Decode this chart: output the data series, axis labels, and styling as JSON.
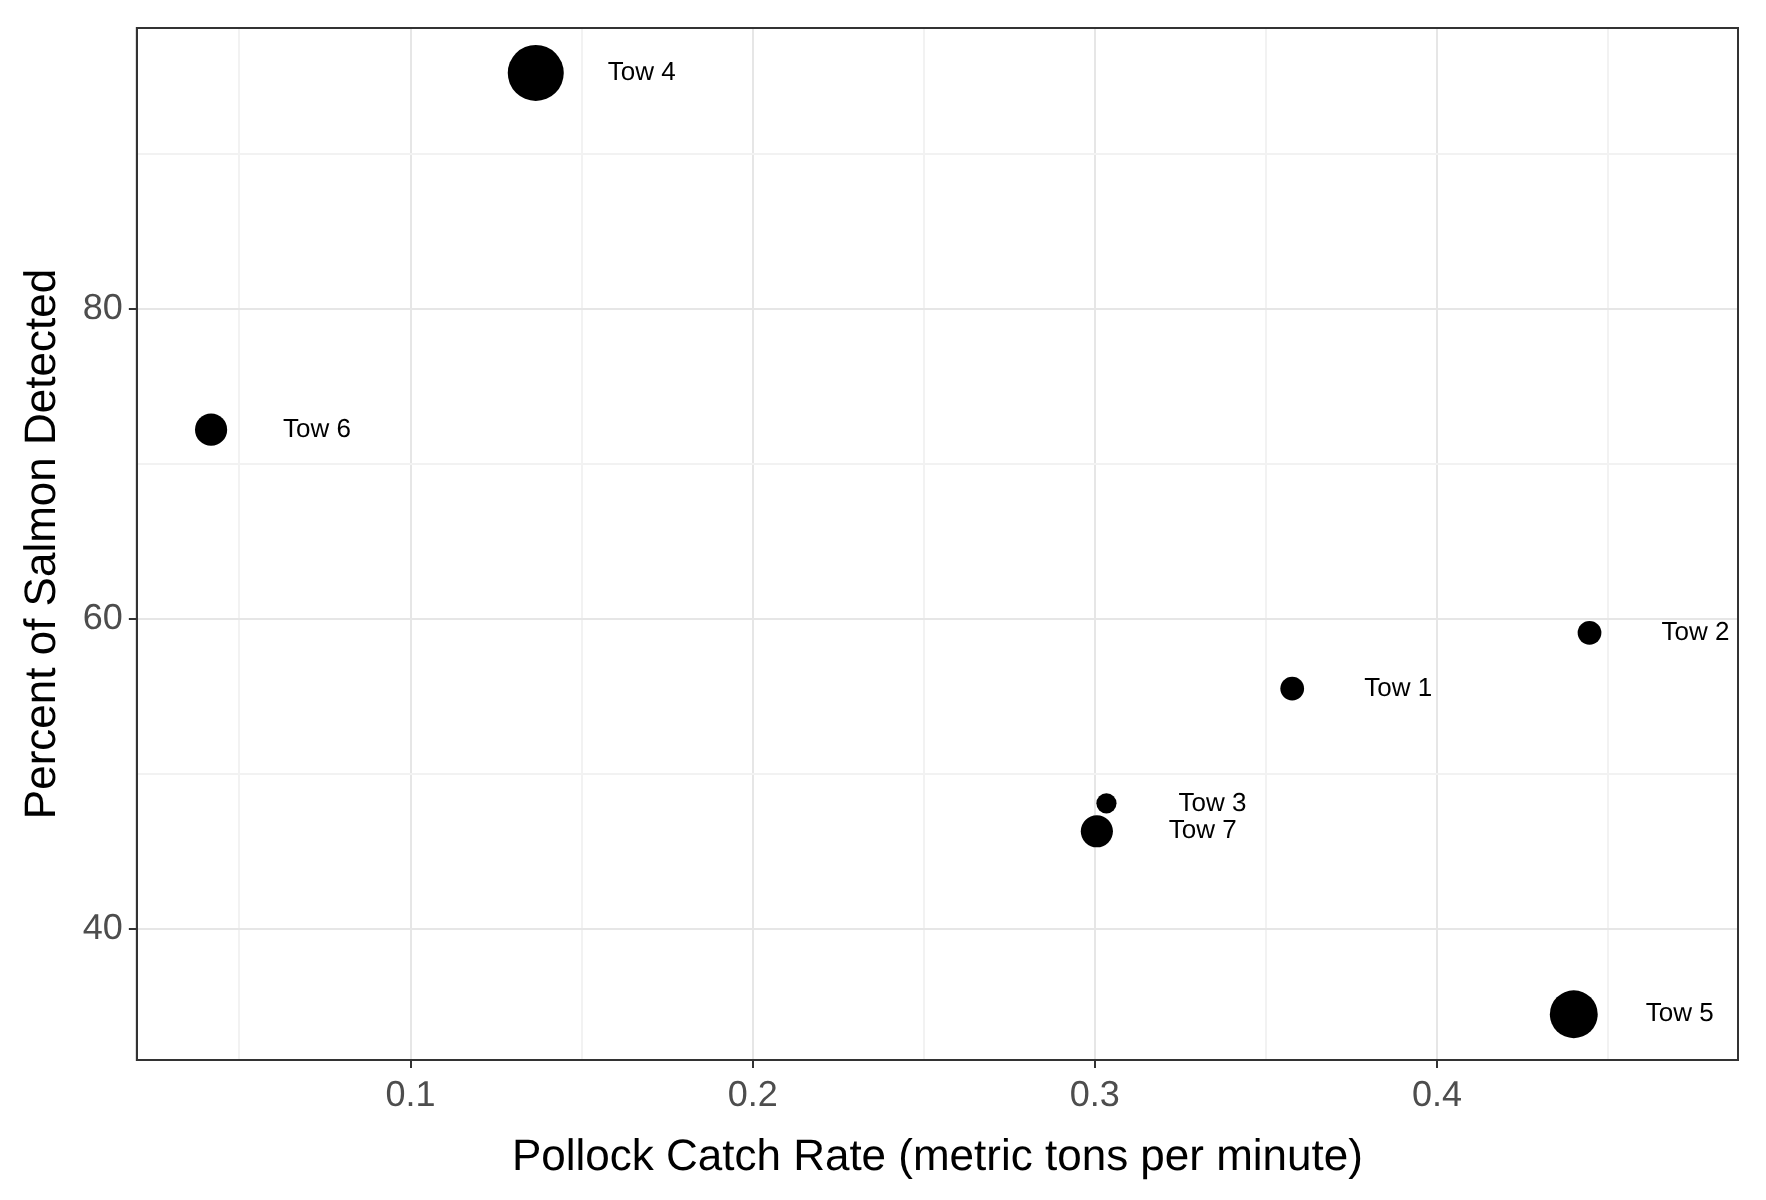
{
  "chart_data": {
    "type": "bubble",
    "xlabel": "Pollock Catch Rate (metric tons per minute)",
    "ylabel": "Percent of Salmon Detected",
    "x": [
      0.3577,
      0.4446,
      0.3034,
      0.1366,
      0.44,
      0.0417,
      0.3006
    ],
    "values": [
      55.5,
      59.1,
      48.1,
      95.2,
      34.5,
      72.2,
      46.3
    ],
    "sizes": [
      0.18,
      0.18,
      0.13,
      1,
      0.73,
      0.33,
      0.33
    ],
    "color": "#000000",
    "xlim": [
      0.02,
      0.488
    ],
    "ylim": [
      31.55,
      98.1
    ],
    "xticks": [
      {
        "value": 0.05,
        "label": null
      },
      0.1,
      {
        "value": 0.15,
        "label": null
      },
      0.2,
      {
        "value": 0.25,
        "label": null
      },
      0.3,
      {
        "value": 0.35,
        "label": null
      },
      0.4,
      {
        "value": 0.45,
        "label": null
      }
    ],
    "yticks": [
      40,
      {
        "value": 50,
        "label": null
      },
      60,
      {
        "value": 70,
        "label": null
      },
      80,
      {
        "value": 90,
        "label": null
      }
    ],
    "grid": true,
    "legend": false,
    "annotations": [
      {
        "text": "Tow 1",
        "x": 0.3577,
        "y": 55.5
      },
      {
        "text": "Tow 2",
        "x": 0.4446,
        "y": 59.1
      },
      {
        "text": "Tow 3",
        "x": 0.3034,
        "y": 48.1
      },
      {
        "text": "Tow 4",
        "x": 0.1366,
        "y": 95.2
      },
      {
        "text": "Tow 5",
        "x": 0.44,
        "y": 34.5
      },
      {
        "text": "Tow 6",
        "x": 0.0417,
        "y": 72.2
      },
      {
        "text": "Tow 7",
        "x": 0.3006,
        "y": 46.3
      }
    ]
  }
}
